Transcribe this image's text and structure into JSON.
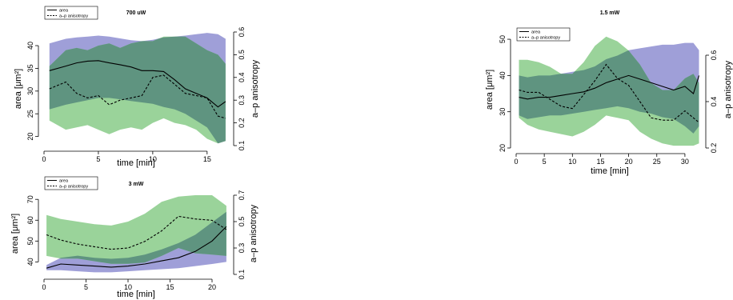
{
  "chart_data": [
    {
      "type": "line",
      "title": "700 uW",
      "xlabel": "time [min]",
      "ylabel_left": "area [μm²]",
      "ylabel_right": "a–p anisotropy",
      "xlim": [
        0,
        17
      ],
      "ylim_left": [
        18,
        43
      ],
      "ylim_right": [
        0.1,
        0.6
      ],
      "xticks": [
        0,
        5,
        10,
        15
      ],
      "yticks_left": [
        20,
        25,
        30,
        35,
        40
      ],
      "yticks_right": [
        0.1,
        0.2,
        0.3,
        0.4,
        0.5,
        0.6
      ],
      "legend": {
        "position": "top-left",
        "entries": [
          "area",
          "a–p anisotropy"
        ]
      },
      "band_colors": {
        "area": "#9a9ad6",
        "anisotropy": "#95d195",
        "overlap": "#5f9480"
      },
      "x": [
        0.5,
        2,
        3,
        4,
        5,
        6,
        7,
        8,
        9,
        10,
        11,
        12,
        13,
        14,
        15,
        16,
        16.7
      ],
      "series": [
        {
          "name": "area",
          "axis": "left",
          "mean": [
            34.5,
            35.5,
            36.2,
            36.6,
            36.7,
            36.2,
            35.8,
            35.3,
            34.5,
            34.5,
            34.3,
            32.5,
            30.5,
            29.5,
            28.5,
            26.5,
            27.7
          ],
          "lower": [
            26,
            27,
            27.5,
            28,
            28.5,
            28.5,
            28.2,
            27.8,
            27.5,
            27.2,
            26.5,
            26,
            25,
            23.5,
            22,
            18.5,
            19
          ],
          "upper": [
            40.5,
            41.5,
            41.8,
            42,
            42.2,
            42,
            41.6,
            41.2,
            41,
            41.3,
            41.8,
            42,
            42.2,
            42.5,
            42.8,
            42.5,
            41.5
          ]
        },
        {
          "name": "a–p anisotropy",
          "axis": "right",
          "mean": [
            0.35,
            0.38,
            0.33,
            0.31,
            0.32,
            0.28,
            0.3,
            0.31,
            0.32,
            0.4,
            0.41,
            0.37,
            0.33,
            0.32,
            0.31,
            0.23,
            0.22
          ],
          "lower": [
            0.21,
            0.17,
            0.18,
            0.19,
            0.17,
            0.15,
            0.17,
            0.18,
            0.17,
            0.2,
            0.22,
            0.2,
            0.19,
            0.17,
            0.13,
            0.11,
            0.12
          ],
          "upper": [
            0.45,
            0.52,
            0.53,
            0.52,
            0.54,
            0.55,
            0.53,
            0.55,
            0.56,
            0.56,
            0.58,
            0.58,
            0.58,
            0.55,
            0.52,
            0.5,
            0.46
          ]
        }
      ]
    },
    {
      "type": "line",
      "title": "1.5 mW",
      "xlabel": "time [min]",
      "ylabel_left": "area [μm²]",
      "ylabel_right": "a–p anisotropy",
      "xlim": [
        0,
        33
      ],
      "ylim_left": [
        20,
        52
      ],
      "ylim_right": [
        0.2,
        0.7
      ],
      "xticks": [
        0,
        5,
        10,
        15,
        20,
        25,
        30
      ],
      "yticks_left": [
        20,
        30,
        40,
        50
      ],
      "yticks_right": [
        0.2,
        0.4,
        0.6
      ],
      "legend": {
        "position": "top-left",
        "entries": [
          "area",
          "a–p anisotropy"
        ]
      },
      "band_colors": {
        "area": "#9a9ad6",
        "anisotropy": "#95d195",
        "overlap": "#5f9480"
      },
      "x": [
        0.5,
        2,
        4,
        6,
        8,
        10,
        12,
        14,
        16,
        18,
        20,
        22,
        24,
        26,
        28,
        30,
        31.5,
        32.5
      ],
      "series": [
        {
          "name": "area",
          "axis": "left",
          "mean": [
            34,
            33.5,
            34,
            34,
            34.5,
            35,
            35.5,
            36.5,
            38,
            39,
            40,
            39,
            38,
            37,
            36,
            37,
            35,
            40
          ],
          "lower": [
            29,
            28,
            28.5,
            29,
            29,
            29.5,
            30,
            30.5,
            31,
            31.5,
            31,
            30,
            29.5,
            28.5,
            28,
            26,
            24,
            26
          ],
          "upper": [
            40,
            39.5,
            40,
            40,
            40.5,
            41,
            41.5,
            42.5,
            44.5,
            45.5,
            47,
            47.5,
            48,
            48.5,
            48.5,
            49,
            49,
            47
          ]
        },
        {
          "name": "a–p anisotropy",
          "axis": "right",
          "mean": [
            0.45,
            0.44,
            0.44,
            0.41,
            0.38,
            0.37,
            0.43,
            0.49,
            0.56,
            0.5,
            0.47,
            0.4,
            0.33,
            0.32,
            0.32,
            0.36,
            0.33,
            0.31
          ],
          "lower": [
            0.33,
            0.3,
            0.28,
            0.27,
            0.26,
            0.25,
            0.27,
            0.3,
            0.34,
            0.33,
            0.32,
            0.27,
            0.24,
            0.22,
            0.21,
            0.21,
            0.21,
            0.22
          ],
          "upper": [
            0.58,
            0.58,
            0.57,
            0.55,
            0.52,
            0.52,
            0.57,
            0.64,
            0.68,
            0.66,
            0.62,
            0.56,
            0.48,
            0.45,
            0.45,
            0.5,
            0.52,
            0.48
          ]
        }
      ]
    },
    {
      "type": "line",
      "title": "3 mW",
      "xlabel": "time [min]",
      "ylabel_left": "area [μm²]",
      "ylabel_right": "a–p anisotropy",
      "xlim": [
        0,
        22
      ],
      "ylim_left": [
        34,
        72
      ],
      "ylim_right": [
        0.1,
        0.7
      ],
      "xticks": [
        0,
        5,
        10,
        15,
        20
      ],
      "yticks_left": [
        40,
        50,
        60,
        70
      ],
      "yticks_right": [
        0.1,
        0.3,
        0.5,
        0.7
      ],
      "legend": {
        "position": "top-left",
        "entries": [
          "area",
          "a–p anisotropy"
        ]
      },
      "band_colors": {
        "area": "#9a9ad6",
        "anisotropy": "#95d195",
        "overlap": "#5f9480"
      },
      "x": [
        0.3,
        2,
        4,
        6,
        8,
        10,
        12,
        14,
        16,
        18,
        20,
        21.7
      ],
      "series": [
        {
          "name": "area",
          "axis": "left",
          "mean": [
            37,
            39,
            38.5,
            38,
            37.5,
            38,
            39,
            40.5,
            42,
            45,
            50,
            57
          ],
          "lower": [
            36,
            36,
            35.5,
            35,
            35,
            35.5,
            36,
            36.5,
            37,
            38,
            39,
            40
          ],
          "upper": [
            38.5,
            42,
            43,
            42,
            41.5,
            42,
            43.5,
            46,
            49,
            53,
            59,
            64
          ]
        },
        {
          "name": "a–p anisotropy",
          "axis": "right",
          "mean": [
            0.4,
            0.36,
            0.33,
            0.31,
            0.29,
            0.3,
            0.35,
            0.43,
            0.54,
            0.52,
            0.51,
            0.44
          ],
          "lower": [
            0.24,
            0.22,
            0.22,
            0.2,
            0.18,
            0.18,
            0.19,
            0.24,
            0.3,
            0.26,
            0.25,
            0.24
          ],
          "upper": [
            0.55,
            0.52,
            0.5,
            0.48,
            0.47,
            0.5,
            0.56,
            0.65,
            0.69,
            0.7,
            0.7,
            0.62
          ]
        }
      ]
    }
  ]
}
